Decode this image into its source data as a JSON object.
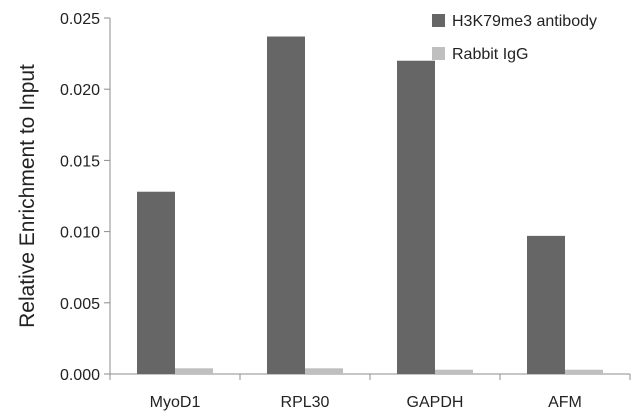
{
  "chart_data": {
    "type": "bar",
    "categories": [
      "MyoD1",
      "RPL30",
      "GAPDH",
      "AFM"
    ],
    "series": [
      {
        "name": "H3K79me3 antibody",
        "color": "#666666",
        "values": [
          0.0128,
          0.0237,
          0.022,
          0.0097
        ]
      },
      {
        "name": "Rabbit IgG",
        "color": "#bfbfbf",
        "values": [
          0.0004,
          0.0004,
          0.0003,
          0.0003
        ]
      }
    ],
    "ylabel": "Relative Enrichment to Input",
    "ylim": [
      0,
      0.025
    ],
    "yticks": [
      "0.000",
      "0.005",
      "0.010",
      "0.015",
      "0.020",
      "0.025"
    ],
    "legend_position": "top-right",
    "grid": false
  }
}
